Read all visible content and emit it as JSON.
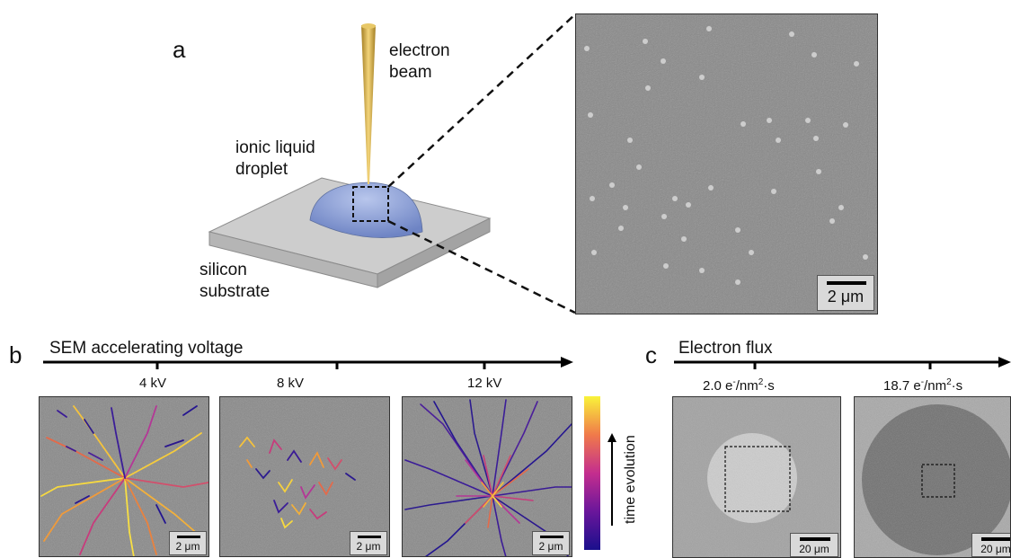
{
  "panel_a": {
    "letter": "a",
    "beam_label_line1": "electron",
    "beam_label_line2": "beam",
    "droplet_label_line1": "ionic liquid",
    "droplet_label_line2": "droplet",
    "substrate_label_line1": "silicon",
    "substrate_label_line2": "substrate",
    "zoom_scale": "2 μm"
  },
  "panel_b": {
    "letter": "b",
    "axis_title": "SEM accelerating voltage",
    "voltages": [
      "4 kV",
      "8 kV",
      "12 kV"
    ],
    "scale": "2 μm",
    "colorbar_label": "time evolution"
  },
  "panel_c": {
    "letter": "c",
    "axis_title": "Electron flux",
    "flux1_value": "2.0 e",
    "flux1_unit": "/nm",
    "flux_tail": "·s",
    "flux2_value": "18.7 e",
    "sup_minus": "-",
    "sup_two": "2",
    "scale": "20 μm"
  },
  "colors": {
    "beam": "#d9b24a",
    "droplet": "#8fa3d6",
    "substrate_top": "#cfcfcf",
    "sem_gray": "#8a8a8a",
    "colormap_start": "#1a0f8c",
    "colormap_mid": "#c42e8e",
    "colormap_end": "#f9f33a"
  }
}
